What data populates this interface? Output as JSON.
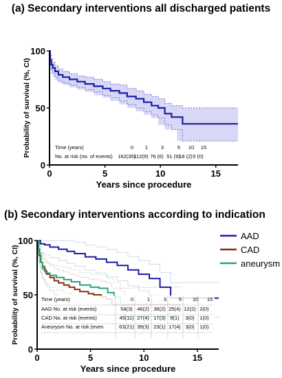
{
  "chart_data": [
    {
      "type": "line",
      "title": "(a) Secondary interventions all discharged patients",
      "xlabel": "Years since procedure",
      "ylabel": "Probability of survival (%, CI)",
      "xlim": [
        0,
        17
      ],
      "ylim": [
        0,
        100
      ],
      "xticks": [
        "0",
        "5",
        "10",
        "15"
      ],
      "yticks": [
        "0",
        "50",
        "100"
      ],
      "colors": {
        "curve": "#1a1aa6",
        "ci_fill": "#d8d8f6",
        "ci_line": "#6a6ad0"
      },
      "series": [
        {
          "x": [
            0,
            0.05,
            0.15,
            0.3,
            0.5,
            0.8,
            1.2,
            1.8,
            2.5,
            3.2,
            4.0,
            4.8,
            5.5,
            6.3,
            7.0,
            7.8,
            8.5,
            9.2,
            9.8,
            10.4,
            11.0,
            11.5,
            12.0,
            13.0,
            15.0,
            17.0
          ],
          "y": [
            100,
            92,
            88,
            85,
            82,
            79,
            77,
            75,
            73,
            71,
            69,
            67,
            65,
            63,
            60,
            58,
            55,
            52,
            50,
            45,
            42,
            42,
            36,
            36,
            36,
            36
          ],
          "upper": [
            100,
            97,
            93,
            90,
            87,
            84,
            82,
            80,
            78,
            77,
            75,
            73,
            71,
            70,
            67,
            65,
            62,
            60,
            58,
            54,
            52,
            52,
            50,
            50,
            50,
            50
          ],
          "lower": [
            100,
            87,
            83,
            80,
            77,
            74,
            72,
            70,
            68,
            66,
            64,
            61,
            59,
            56,
            53,
            50,
            47,
            44,
            41,
            35,
            31,
            31,
            21,
            21,
            21,
            21
          ]
        }
      ],
      "risk_table": {
        "rows": [
          {
            "label": "Time (years)",
            "values": [
              "0",
              "1",
              "3",
              "5",
              "10",
              "15"
            ]
          },
          {
            "label": "No. at risk (no. of events)",
            "values": [
              "162(35)",
              "112(9)",
              "76 (6)",
              "51 (9)",
              "18 (2)",
              "5 (0)"
            ]
          }
        ]
      }
    },
    {
      "type": "line",
      "title": "(b) Secondary interventions according to indication",
      "xlabel": "Years since procedure",
      "ylabel": "Probability of survival (%, CI)",
      "xlim": [
        0,
        17
      ],
      "ylim": [
        0,
        100
      ],
      "xticks": [
        "0",
        "5",
        "10",
        "15"
      ],
      "yticks": [
        "0",
        "50",
        "100"
      ],
      "legend": "right",
      "series": [
        {
          "name": "AAD",
          "color": "#1a1aa6",
          "x": [
            0,
            0.3,
            0.7,
            1.2,
            2.0,
            2.8,
            3.5,
            4.5,
            5.5,
            6.5,
            7.5,
            8.5,
            9.5,
            10.5,
            11.5,
            12.5,
            13.5,
            17.0
          ],
          "y": [
            100,
            97,
            96,
            94,
            92,
            90,
            88,
            85,
            83,
            80,
            77,
            73,
            69,
            65,
            57,
            47,
            47,
            47
          ]
        },
        {
          "name": "CAD",
          "color": "#8b2c0e",
          "x": [
            0,
            0.1,
            0.2,
            0.35,
            0.5,
            0.7,
            0.9,
            1.2,
            1.6,
            2.0,
            2.5,
            3.0,
            3.5,
            4.0,
            4.8,
            5.3,
            6.0,
            6.5,
            7.0,
            9.0,
            11.0,
            13.0,
            13.5
          ],
          "y": [
            100,
            92,
            86,
            80,
            76,
            72,
            69,
            66,
            63,
            61,
            59,
            57,
            55,
            53,
            51,
            50,
            48,
            46,
            41,
            41,
            41,
            41,
            41
          ]
        },
        {
          "name": "aneurysm",
          "color": "#2aa07a",
          "x": [
            0,
            0.15,
            0.3,
            0.5,
            0.8,
            1.2,
            1.8,
            2.5,
            3.2,
            4.0,
            5.0,
            5.8,
            6.6,
            7.2,
            7.8,
            8.2,
            10.0,
            13.0
          ],
          "y": [
            100,
            88,
            80,
            74,
            70,
            68,
            66,
            64,
            62,
            59,
            57,
            56,
            52,
            48,
            40,
            30,
            30,
            30
          ]
        }
      ],
      "risk_table": {
        "rows": [
          {
            "label": "Time (years)",
            "values": [
              "0",
              "1",
              "3",
              "5",
              "10",
              "15"
            ]
          },
          {
            "label": "AAD No. at risk (events)",
            "values": [
              "54(3)",
              "46(2)",
              "36(2)",
              "25(4)",
              "12(2)",
              "2(0)"
            ]
          },
          {
            "label": "CAD No. at risk (events)",
            "values": [
              "45(11)",
              "27(4)",
              "17(3)",
              "9(1)",
              "3(0)",
              "1(0)"
            ]
          },
          {
            "label": "Aneurysm No. at risk (even",
            "values": [
              "63(21)",
              "39(3)",
              "23(1)",
              "17(4)",
              "3(0)",
              "1(0)"
            ]
          }
        ]
      }
    }
  ]
}
